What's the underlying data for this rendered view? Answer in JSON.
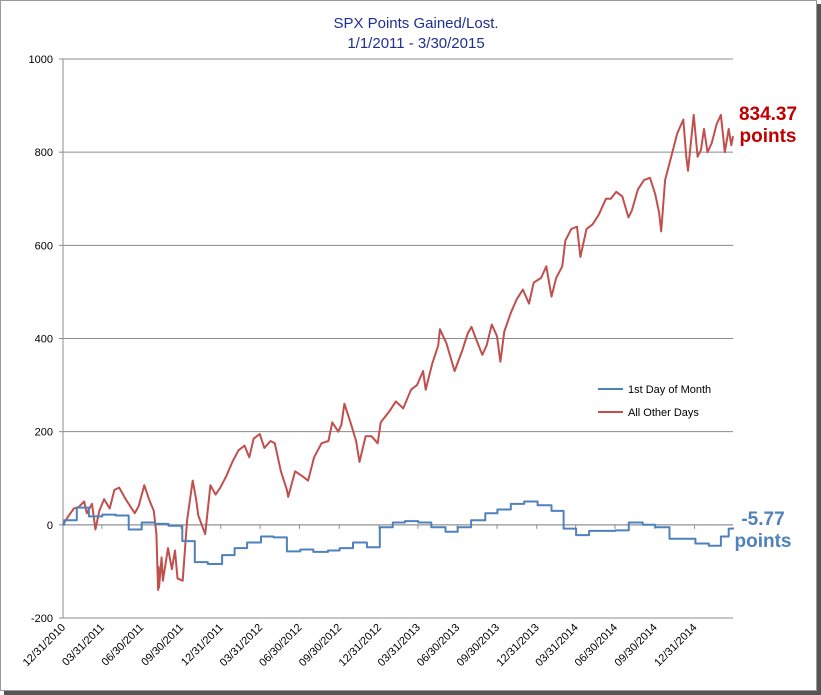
{
  "chart_data": {
    "type": "line",
    "title": "SPX Points Gained/Lost.",
    "subtitle": "1/1/2011 - 3/30/2015",
    "xlabel": "",
    "ylabel": "",
    "xlim": [
      "2010-12-31",
      "2015-03-30"
    ],
    "ylim": [
      -200,
      1000
    ],
    "yticks": [
      -200,
      0,
      200,
      400,
      600,
      800,
      1000
    ],
    "ytick_labels": [
      "-200",
      "0",
      "200",
      "400",
      "600",
      "800",
      "1000"
    ],
    "xticks": [
      "2010-12-31",
      "2011-03-31",
      "2011-06-30",
      "2011-09-30",
      "2011-12-31",
      "2012-03-31",
      "2012-06-30",
      "2012-09-30",
      "2012-12-31",
      "2013-03-31",
      "2013-06-30",
      "2013-09-30",
      "2013-12-31",
      "2014-03-31",
      "2014-06-30",
      "2014-09-30",
      "2014-12-31"
    ],
    "xtick_labels": [
      "12/31/2010",
      "03/31/2011",
      "06/30/2011",
      "09/30/2011",
      "12/31/2011",
      "03/31/2012",
      "06/30/2012",
      "09/30/2012",
      "12/31/2012",
      "03/31/2013",
      "06/30/2013",
      "09/30/2013",
      "12/31/2013",
      "03/31/2014",
      "06/30/2014",
      "09/30/2014",
      "12/31/2014"
    ],
    "grid": "horizontal",
    "legend": "center-right",
    "series": [
      {
        "name": "1st Day of Month",
        "color": "#4f81bd",
        "step": true,
        "points": [
          [
            "2010-12-31",
            0
          ],
          [
            "2011-01-03",
            10
          ],
          [
            "2011-02-01",
            37
          ],
          [
            "2011-03-01",
            18
          ],
          [
            "2011-04-01",
            22
          ],
          [
            "2011-05-02",
            20
          ],
          [
            "2011-06-01",
            -10
          ],
          [
            "2011-07-01",
            5
          ],
          [
            "2011-08-01",
            2
          ],
          [
            "2011-09-01",
            -2
          ],
          [
            "2011-10-03",
            -35
          ],
          [
            "2011-11-01",
            -80
          ],
          [
            "2011-12-01",
            -84
          ],
          [
            "2012-01-03",
            -65
          ],
          [
            "2012-02-01",
            -50
          ],
          [
            "2012-03-01",
            -38
          ],
          [
            "2012-04-02",
            -25
          ],
          [
            "2012-05-01",
            -27
          ],
          [
            "2012-06-01",
            -57
          ],
          [
            "2012-07-02",
            -53
          ],
          [
            "2012-08-01",
            -58
          ],
          [
            "2012-09-04",
            -55
          ],
          [
            "2012-10-01",
            -50
          ],
          [
            "2012-11-01",
            -38
          ],
          [
            "2012-12-03",
            -48
          ],
          [
            "2013-01-02",
            -5
          ],
          [
            "2013-02-01",
            5
          ],
          [
            "2013-03-01",
            8
          ],
          [
            "2013-04-01",
            5
          ],
          [
            "2013-05-01",
            -5
          ],
          [
            "2013-06-03",
            -15
          ],
          [
            "2013-07-01",
            -5
          ],
          [
            "2013-08-01",
            10
          ],
          [
            "2013-09-03",
            25
          ],
          [
            "2013-10-01",
            33
          ],
          [
            "2013-11-01",
            45
          ],
          [
            "2013-12-02",
            50
          ],
          [
            "2014-01-02",
            42
          ],
          [
            "2014-02-03",
            30
          ],
          [
            "2014-03-03",
            -8
          ],
          [
            "2014-04-01",
            -22
          ],
          [
            "2014-05-01",
            -13
          ],
          [
            "2014-06-02",
            -13
          ],
          [
            "2014-07-01",
            -12
          ],
          [
            "2014-08-01",
            5
          ],
          [
            "2014-09-02",
            0
          ],
          [
            "2014-10-01",
            -5
          ],
          [
            "2014-11-03",
            -30
          ],
          [
            "2014-12-01",
            -30
          ],
          [
            "2015-01-02",
            -40
          ],
          [
            "2015-02-02",
            -45
          ],
          [
            "2015-03-02",
            -25
          ],
          [
            "2015-03-20",
            -8
          ],
          [
            "2015-03-30",
            -5.77
          ]
        ]
      },
      {
        "name": "All Other Days",
        "color": "#c0504d",
        "step": false,
        "points": [
          [
            "2010-12-31",
            0
          ],
          [
            "2011-01-12",
            18
          ],
          [
            "2011-01-25",
            35
          ],
          [
            "2011-02-05",
            38
          ],
          [
            "2011-02-18",
            50
          ],
          [
            "2011-02-24",
            25
          ],
          [
            "2011-03-08",
            45
          ],
          [
            "2011-03-16",
            -10
          ],
          [
            "2011-03-25",
            30
          ],
          [
            "2011-04-05",
            55
          ],
          [
            "2011-04-18",
            35
          ],
          [
            "2011-04-29",
            75
          ],
          [
            "2011-05-10",
            80
          ],
          [
            "2011-05-25",
            55
          ],
          [
            "2011-06-08",
            35
          ],
          [
            "2011-06-15",
            25
          ],
          [
            "2011-06-24",
            40
          ],
          [
            "2011-07-07",
            85
          ],
          [
            "2011-07-18",
            55
          ],
          [
            "2011-07-29",
            30
          ],
          [
            "2011-08-04",
            -20
          ],
          [
            "2011-08-08",
            -140
          ],
          [
            "2011-08-09",
            -90
          ],
          [
            "2011-08-10",
            -135
          ],
          [
            "2011-08-16",
            -70
          ],
          [
            "2011-08-19",
            -120
          ],
          [
            "2011-08-31",
            -50
          ],
          [
            "2011-09-09",
            -95
          ],
          [
            "2011-09-16",
            -55
          ],
          [
            "2011-09-22",
            -115
          ],
          [
            "2011-10-04",
            -120
          ],
          [
            "2011-10-14",
            10
          ],
          [
            "2011-10-27",
            95
          ],
          [
            "2011-11-04",
            55
          ],
          [
            "2011-11-09",
            20
          ],
          [
            "2011-11-25",
            -20
          ],
          [
            "2011-12-07",
            85
          ],
          [
            "2011-12-19",
            65
          ],
          [
            "2011-12-30",
            80
          ],
          [
            "2012-01-13",
            105
          ],
          [
            "2012-01-27",
            135
          ],
          [
            "2012-02-10",
            160
          ],
          [
            "2012-02-24",
            170
          ],
          [
            "2012-03-06",
            145
          ],
          [
            "2012-03-16",
            185
          ],
          [
            "2012-03-30",
            195
          ],
          [
            "2012-04-10",
            165
          ],
          [
            "2012-04-24",
            180
          ],
          [
            "2012-05-04",
            175
          ],
          [
            "2012-05-18",
            115
          ],
          [
            "2012-06-01",
            75
          ],
          [
            "2012-06-04",
            60
          ],
          [
            "2012-06-20",
            115
          ],
          [
            "2012-07-06",
            105
          ],
          [
            "2012-07-20",
            95
          ],
          [
            "2012-08-03",
            145
          ],
          [
            "2012-08-20",
            175
          ],
          [
            "2012-09-05",
            180
          ],
          [
            "2012-09-14",
            220
          ],
          [
            "2012-09-28",
            200
          ],
          [
            "2012-10-05",
            215
          ],
          [
            "2012-10-12",
            260
          ],
          [
            "2012-10-26",
            220
          ],
          [
            "2012-11-08",
            180
          ],
          [
            "2012-11-15",
            140
          ],
          [
            "2012-11-16",
            135
          ],
          [
            "2012-11-30",
            190
          ],
          [
            "2012-12-14",
            190
          ],
          [
            "2012-12-28",
            175
          ],
          [
            "2013-01-04",
            220
          ],
          [
            "2013-01-25",
            245
          ],
          [
            "2013-02-08",
            265
          ],
          [
            "2013-02-25",
            250
          ],
          [
            "2013-03-15",
            290
          ],
          [
            "2013-03-29",
            300
          ],
          [
            "2013-04-12",
            330
          ],
          [
            "2013-04-18",
            290
          ],
          [
            "2013-05-03",
            345
          ],
          [
            "2013-05-17",
            385
          ],
          [
            "2013-05-21",
            420
          ],
          [
            "2013-06-05",
            390
          ],
          [
            "2013-06-24",
            330
          ],
          [
            "2013-07-12",
            375
          ],
          [
            "2013-07-24",
            410
          ],
          [
            "2013-08-02",
            425
          ],
          [
            "2013-08-14",
            395
          ],
          [
            "2013-08-27",
            365
          ],
          [
            "2013-09-06",
            385
          ],
          [
            "2013-09-18",
            430
          ],
          [
            "2013-09-30",
            405
          ],
          [
            "2013-10-08",
            350
          ],
          [
            "2013-10-17",
            415
          ],
          [
            "2013-11-01",
            455
          ],
          [
            "2013-11-15",
            485
          ],
          [
            "2013-11-29",
            505
          ],
          [
            "2013-12-13",
            475
          ],
          [
            "2013-12-24",
            520
          ],
          [
            "2014-01-10",
            530
          ],
          [
            "2014-01-22",
            555
          ],
          [
            "2014-02-03",
            490
          ],
          [
            "2014-02-14",
            530
          ],
          [
            "2014-02-28",
            555
          ],
          [
            "2014-03-07",
            610
          ],
          [
            "2014-03-21",
            635
          ],
          [
            "2014-04-03",
            640
          ],
          [
            "2014-04-11",
            575
          ],
          [
            "2014-04-25",
            635
          ],
          [
            "2014-05-09",
            645
          ],
          [
            "2014-05-23",
            665
          ],
          [
            "2014-06-09",
            700
          ],
          [
            "2014-06-20",
            700
          ],
          [
            "2014-07-03",
            715
          ],
          [
            "2014-07-17",
            705
          ],
          [
            "2014-07-31",
            660
          ],
          [
            "2014-08-08",
            675
          ],
          [
            "2014-08-22",
            720
          ],
          [
            "2014-09-05",
            740
          ],
          [
            "2014-09-19",
            745
          ],
          [
            "2014-10-01",
            710
          ],
          [
            "2014-10-10",
            670
          ],
          [
            "2014-10-15",
            630
          ],
          [
            "2014-10-24",
            740
          ],
          [
            "2014-11-07",
            790
          ],
          [
            "2014-11-21",
            840
          ],
          [
            "2014-12-05",
            870
          ],
          [
            "2014-12-12",
            790
          ],
          [
            "2014-12-16",
            760
          ],
          [
            "2014-12-29",
            880
          ],
          [
            "2015-01-07",
            790
          ],
          [
            "2015-01-15",
            805
          ],
          [
            "2015-01-22",
            850
          ],
          [
            "2015-01-30",
            800
          ],
          [
            "2015-02-09",
            820
          ],
          [
            "2015-02-20",
            860
          ],
          [
            "2015-03-02",
            880
          ],
          [
            "2015-03-11",
            800
          ],
          [
            "2015-03-20",
            850
          ],
          [
            "2015-03-26",
            815
          ],
          [
            "2015-03-30",
            834.37
          ]
        ]
      }
    ],
    "annotations": [
      {
        "value": "834.37",
        "unit": "points",
        "color": "#c00000",
        "series": "All Other Days"
      },
      {
        "value": "-5.77",
        "unit": "points",
        "color": "#4f81bd",
        "series": "1st Day of Month"
      }
    ]
  }
}
